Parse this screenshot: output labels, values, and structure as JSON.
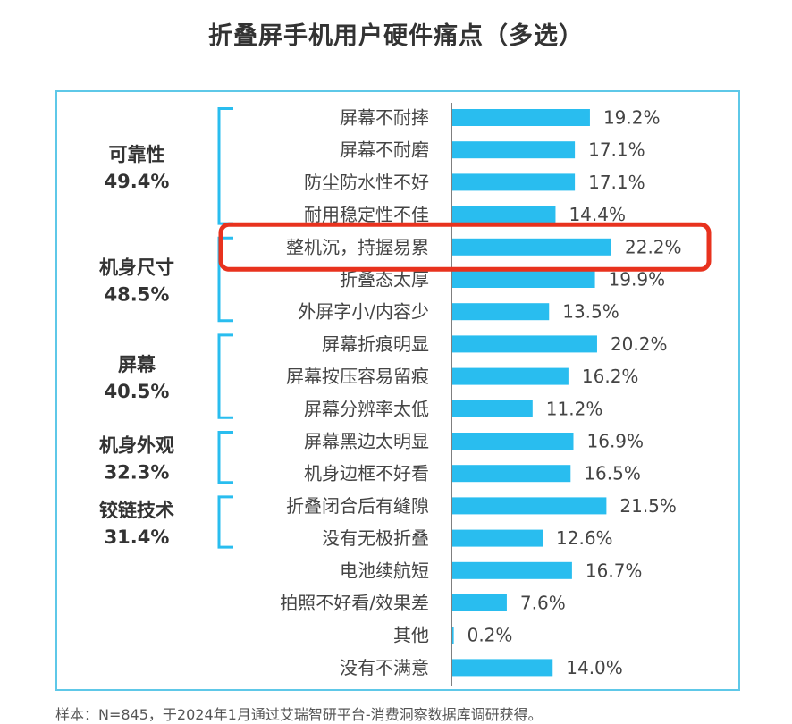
{
  "title": "折叠屏手机用户硬件痛点（多选）",
  "footnote": "样本：N=845，于2024年1月通过艾瑞智研平台-消费洞察数据库调研获得。",
  "colors": {
    "bar": "#29bdef",
    "bracket": "#29bdef",
    "frame": "#5ec8e8",
    "highlight": "#e8321e"
  },
  "chart_data": {
    "type": "bar",
    "orientation": "horizontal",
    "categories": [
      "屏幕不耐摔",
      "屏幕不耐磨",
      "防尘防水性不好",
      "耐用稳定性不佳",
      "整机沉，持握易累",
      "折叠态太厚",
      "外屏字小/内容少",
      "屏幕折痕明显",
      "屏幕按压容易留痕",
      "屏幕分辨率太低",
      "屏幕黑边太明显",
      "机身边框不好看",
      "折叠闭合后有缝隙",
      "没有无极折叠",
      "电池续航短",
      "拍照不好看/效果差",
      "其他",
      "没有不满意"
    ],
    "values": [
      19.2,
      17.1,
      17.1,
      14.4,
      22.2,
      19.9,
      13.5,
      20.2,
      16.2,
      11.2,
      16.9,
      16.5,
      21.5,
      12.6,
      16.7,
      7.6,
      0.2,
      14.0
    ],
    "value_labels": [
      "19.2%",
      "17.1%",
      "17.1%",
      "14.4%",
      "22.2%",
      "19.9%",
      "13.5%",
      "20.2%",
      "16.2%",
      "11.2%",
      "16.9%",
      "16.5%",
      "21.5%",
      "12.6%",
      "16.7%",
      "7.6%",
      "0.2%",
      "14.0%"
    ],
    "groups": [
      {
        "name": "可靠性",
        "value": "49.4%",
        "first": 0,
        "last": 3
      },
      {
        "name": "机身尺寸",
        "value": "48.5%",
        "first": 4,
        "last": 6
      },
      {
        "name": "屏幕",
        "value": "40.5%",
        "first": 7,
        "last": 9
      },
      {
        "name": "机身外观",
        "value": "32.3%",
        "first": 10,
        "last": 11
      },
      {
        "name": "铰链技术",
        "value": "31.4%",
        "first": 12,
        "last": 13
      }
    ],
    "highlighted_index": 4,
    "xlim": [
      0,
      22.2
    ]
  }
}
